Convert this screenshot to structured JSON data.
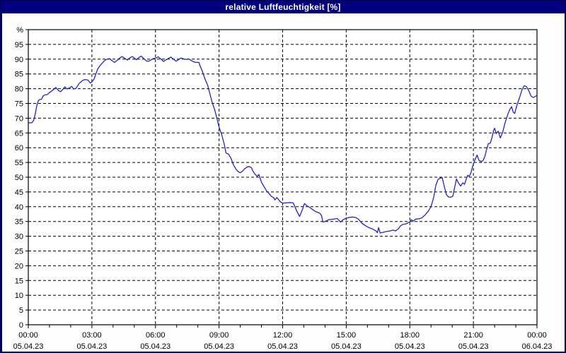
{
  "window": {
    "title": "relative Luftfeuchtigkeit [%]"
  },
  "colors": {
    "frame": "#000080",
    "title_text": "#ffffff",
    "panel_bg": "#fdfdfc",
    "plot_bg": "#ffffff",
    "plot_border": "#000000",
    "grid": "#000000",
    "tick": "#000000",
    "label_text": "#000000",
    "line": "#2222cc"
  },
  "chart_data": {
    "type": "line",
    "title": "relative Luftfeuchtigkeit [%]",
    "ylabel": "%",
    "xlabel": "",
    "ylim": [
      0,
      100
    ],
    "ytick_step": 5,
    "ytick_labels": [
      "0",
      "5",
      "10",
      "15",
      "20",
      "25",
      "30",
      "35",
      "40",
      "45",
      "50",
      "55",
      "60",
      "65",
      "70",
      "75",
      "80",
      "85",
      "90",
      "95"
    ],
    "y_unit_label": "%",
    "xlim_hours": [
      0,
      24
    ],
    "x_major_step_hours": 3,
    "x_minor_step_hours": 1,
    "grid": "dashed-both-axes",
    "legend": "none",
    "x_ticks": [
      {
        "time": "00:00",
        "date": "05.04.23"
      },
      {
        "time": "03:00",
        "date": "05.04.23"
      },
      {
        "time": "06:00",
        "date": "05.04.23"
      },
      {
        "time": "09:00",
        "date": "05.04.23"
      },
      {
        "time": "12:00",
        "date": "05.04.23"
      },
      {
        "time": "15:00",
        "date": "05.04.23"
      },
      {
        "time": "18:00",
        "date": "05.04.23"
      },
      {
        "time": "21:00",
        "date": "05.04.23"
      },
      {
        "time": "00:00",
        "date": "06.04.23"
      }
    ],
    "series": [
      {
        "name": "relative Luftfeuchtigkeit",
        "unit": "%",
        "color": "#2222cc",
        "points": [
          [
            0.0,
            68.6
          ],
          [
            0.08,
            68.4
          ],
          [
            0.17,
            68.5
          ],
          [
            0.25,
            69.2
          ],
          [
            0.33,
            71.5
          ],
          [
            0.4,
            74.2
          ],
          [
            0.47,
            75.9
          ],
          [
            0.53,
            76.3
          ],
          [
            0.62,
            76.4
          ],
          [
            0.7,
            77.5
          ],
          [
            0.78,
            77.9
          ],
          [
            0.9,
            78.0
          ],
          [
            1.0,
            78.7
          ],
          [
            1.1,
            79.2
          ],
          [
            1.2,
            79.8
          ],
          [
            1.3,
            80.4
          ],
          [
            1.42,
            79.4
          ],
          [
            1.52,
            79.0
          ],
          [
            1.62,
            79.7
          ],
          [
            1.72,
            80.6
          ],
          [
            1.83,
            79.9
          ],
          [
            1.95,
            80.3
          ],
          [
            2.05,
            80.8
          ],
          [
            2.13,
            79.9
          ],
          [
            2.25,
            80.1
          ],
          [
            2.4,
            81.8
          ],
          [
            2.55,
            82.7
          ],
          [
            2.67,
            83.1
          ],
          [
            2.82,
            82.9
          ],
          [
            2.92,
            81.9
          ],
          [
            3.0,
            82.3
          ],
          [
            3.1,
            83.2
          ],
          [
            3.18,
            84.8
          ],
          [
            3.27,
            86.6
          ],
          [
            3.37,
            87.7
          ],
          [
            3.47,
            88.5
          ],
          [
            3.57,
            89.3
          ],
          [
            3.67,
            89.9
          ],
          [
            3.83,
            90.2
          ],
          [
            3.95,
            89.5
          ],
          [
            4.07,
            88.9
          ],
          [
            4.18,
            89.5
          ],
          [
            4.3,
            90.3
          ],
          [
            4.42,
            90.9
          ],
          [
            4.55,
            90.3
          ],
          [
            4.67,
            89.7
          ],
          [
            4.78,
            90.4
          ],
          [
            4.9,
            90.9
          ],
          [
            5.0,
            90.4
          ],
          [
            5.1,
            89.8
          ],
          [
            5.22,
            90.6
          ],
          [
            5.33,
            91.0
          ],
          [
            5.45,
            90.2
          ],
          [
            5.57,
            89.4
          ],
          [
            5.68,
            89.3
          ],
          [
            5.8,
            89.8
          ],
          [
            5.9,
            90.2
          ],
          [
            6.0,
            90.3
          ],
          [
            6.13,
            90.8
          ],
          [
            6.25,
            90.1
          ],
          [
            6.38,
            89.2
          ],
          [
            6.5,
            89.8
          ],
          [
            6.62,
            90.3
          ],
          [
            6.73,
            90.7
          ],
          [
            6.85,
            90.0
          ],
          [
            6.97,
            89.3
          ],
          [
            7.08,
            89.8
          ],
          [
            7.2,
            90.4
          ],
          [
            7.33,
            90.1
          ],
          [
            7.45,
            89.9
          ],
          [
            7.57,
            90.1
          ],
          [
            7.67,
            89.6
          ],
          [
            7.8,
            89.1
          ],
          [
            7.9,
            88.9
          ],
          [
            8.05,
            88.9
          ],
          [
            8.1,
            87.8
          ],
          [
            8.2,
            86.1
          ],
          [
            8.33,
            83.4
          ],
          [
            8.47,
            81.0
          ],
          [
            8.57,
            78.2
          ],
          [
            8.67,
            75.5
          ],
          [
            8.8,
            72.7
          ],
          [
            8.9,
            69.9
          ],
          [
            9.0,
            67.0
          ],
          [
            9.13,
            64.3
          ],
          [
            9.25,
            61.0
          ],
          [
            9.33,
            58.2
          ],
          [
            9.45,
            57.8
          ],
          [
            9.57,
            56.3
          ],
          [
            9.67,
            54.3
          ],
          [
            9.8,
            52.7
          ],
          [
            9.9,
            51.9
          ],
          [
            10.0,
            51.5
          ],
          [
            10.1,
            52.0
          ],
          [
            10.2,
            52.8
          ],
          [
            10.33,
            53.5
          ],
          [
            10.43,
            53.6
          ],
          [
            10.53,
            53.2
          ],
          [
            10.6,
            52.0
          ],
          [
            10.7,
            51.0
          ],
          [
            10.8,
            50.3
          ],
          [
            10.88,
            50.9
          ],
          [
            11.0,
            48.3
          ],
          [
            11.13,
            46.7
          ],
          [
            11.23,
            45.5
          ],
          [
            11.33,
            44.7
          ],
          [
            11.47,
            43.5
          ],
          [
            11.57,
            43.1
          ],
          [
            11.63,
            42.3
          ],
          [
            11.73,
            43.1
          ],
          [
            11.87,
            41.8
          ],
          [
            12.0,
            41.2
          ],
          [
            12.15,
            41.3
          ],
          [
            12.35,
            41.4
          ],
          [
            12.5,
            41.3
          ],
          [
            12.67,
            38.5
          ],
          [
            12.8,
            36.7
          ],
          [
            12.93,
            39.0
          ],
          [
            13.03,
            41.1
          ],
          [
            13.15,
            40.3
          ],
          [
            13.25,
            39.9
          ],
          [
            13.4,
            39.1
          ],
          [
            13.57,
            38.3
          ],
          [
            13.73,
            37.9
          ],
          [
            13.83,
            37.1
          ],
          [
            13.9,
            34.8
          ],
          [
            14.0,
            35.0
          ],
          [
            14.17,
            35.6
          ],
          [
            14.4,
            35.8
          ],
          [
            14.57,
            36.0
          ],
          [
            14.67,
            35.3
          ],
          [
            14.73,
            34.8
          ],
          [
            14.85,
            35.6
          ],
          [
            15.0,
            36.1
          ],
          [
            15.15,
            36.4
          ],
          [
            15.3,
            36.5
          ],
          [
            15.42,
            36.4
          ],
          [
            15.57,
            35.8
          ],
          [
            15.73,
            34.5
          ],
          [
            15.9,
            33.6
          ],
          [
            16.07,
            32.9
          ],
          [
            16.23,
            32.5
          ],
          [
            16.4,
            31.8
          ],
          [
            16.47,
            31.2
          ],
          [
            16.53,
            32.9
          ],
          [
            16.6,
            31.1
          ],
          [
            16.73,
            31.3
          ],
          [
            16.9,
            31.6
          ],
          [
            17.07,
            31.8
          ],
          [
            17.2,
            32.1
          ],
          [
            17.33,
            31.8
          ],
          [
            17.47,
            32.6
          ],
          [
            17.57,
            33.6
          ],
          [
            17.67,
            34.0
          ],
          [
            17.83,
            34.2
          ],
          [
            17.93,
            34.6
          ],
          [
            18.0,
            34.9
          ],
          [
            18.07,
            35.6
          ],
          [
            18.17,
            35.1
          ],
          [
            18.27,
            35.8
          ],
          [
            18.43,
            35.9
          ],
          [
            18.57,
            36.2
          ],
          [
            18.73,
            37.3
          ],
          [
            18.87,
            38.5
          ],
          [
            19.0,
            40.0
          ],
          [
            19.13,
            43.3
          ],
          [
            19.23,
            47.3
          ],
          [
            19.33,
            49.2
          ],
          [
            19.43,
            49.7
          ],
          [
            19.53,
            49.8
          ],
          [
            19.63,
            46.8
          ],
          [
            19.73,
            44.0
          ],
          [
            19.83,
            43.3
          ],
          [
            19.93,
            43.2
          ],
          [
            20.03,
            43.6
          ],
          [
            20.13,
            47.0
          ],
          [
            20.2,
            49.4
          ],
          [
            20.3,
            48.0
          ],
          [
            20.4,
            47.0
          ],
          [
            20.5,
            48.1
          ],
          [
            20.58,
            47.6
          ],
          [
            20.67,
            49.5
          ],
          [
            20.73,
            50.7
          ],
          [
            20.8,
            50.2
          ],
          [
            20.88,
            51.4
          ],
          [
            20.95,
            53.3
          ],
          [
            21.0,
            54.5
          ],
          [
            21.08,
            56.0
          ],
          [
            21.17,
            57.5
          ],
          [
            21.27,
            55.6
          ],
          [
            21.38,
            55.3
          ],
          [
            21.47,
            55.8
          ],
          [
            21.55,
            57.3
          ],
          [
            21.63,
            59.6
          ],
          [
            21.7,
            61.3
          ],
          [
            21.8,
            61.6
          ],
          [
            21.88,
            63.5
          ],
          [
            21.95,
            65.8
          ],
          [
            22.0,
            66.6
          ],
          [
            22.08,
            64.8
          ],
          [
            22.17,
            65.6
          ],
          [
            22.27,
            63.3
          ],
          [
            22.38,
            65.2
          ],
          [
            22.5,
            68.6
          ],
          [
            22.63,
            71.4
          ],
          [
            22.72,
            73.0
          ],
          [
            22.8,
            73.9
          ],
          [
            22.88,
            72.0
          ],
          [
            22.95,
            71.6
          ],
          [
            23.05,
            74.3
          ],
          [
            23.13,
            76.0
          ],
          [
            23.2,
            77.5
          ],
          [
            23.3,
            79.8
          ],
          [
            23.4,
            81.0
          ],
          [
            23.5,
            80.7
          ],
          [
            23.62,
            79.2
          ],
          [
            23.72,
            77.5
          ],
          [
            23.82,
            77.0
          ],
          [
            23.9,
            77.3
          ],
          [
            23.97,
            77.6
          ]
        ]
      }
    ]
  }
}
